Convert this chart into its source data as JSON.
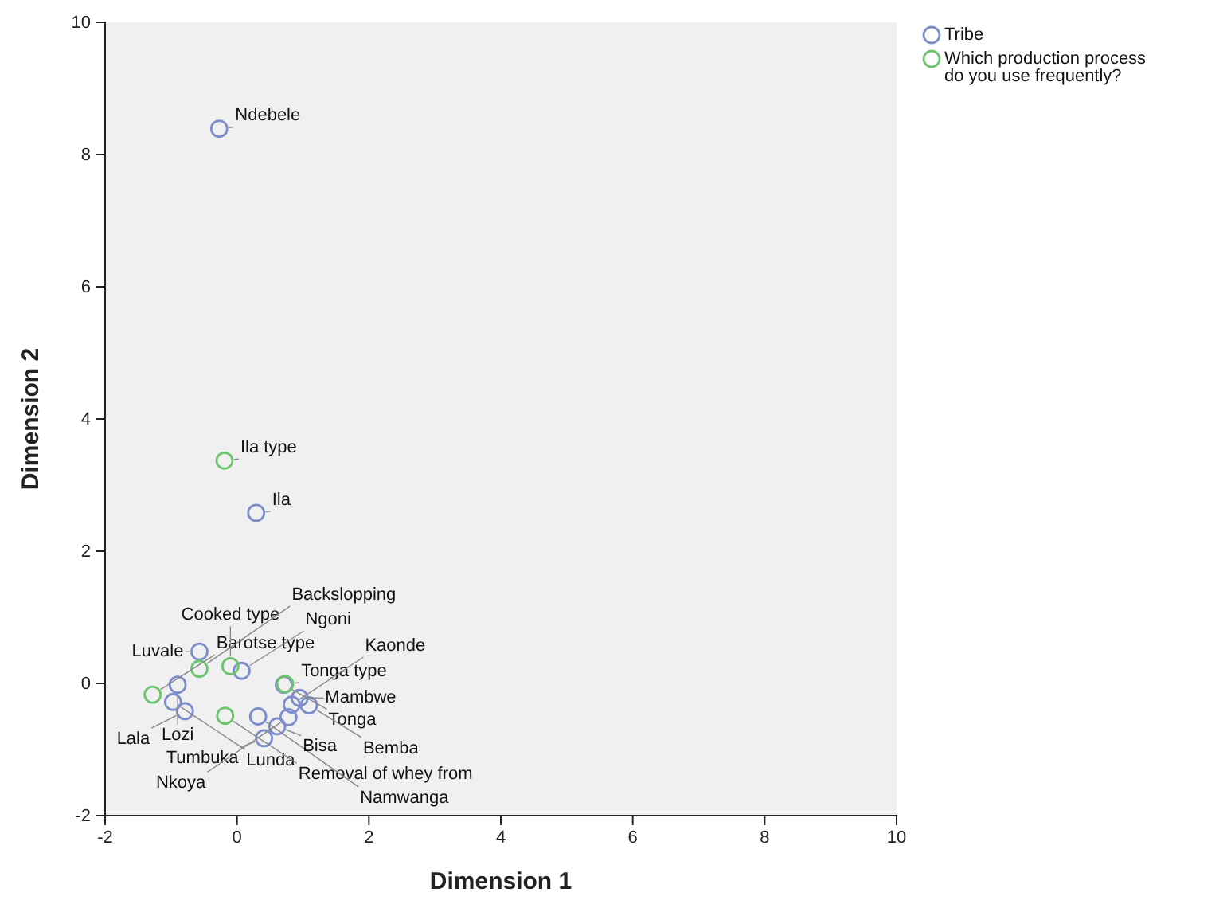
{
  "chart_data": {
    "type": "scatter",
    "xlabel": "Dimension 1",
    "ylabel": "Dimension 2",
    "xlim": [
      -2,
      10
    ],
    "ylim": [
      -2,
      10
    ],
    "xticks": [
      -2,
      0,
      2,
      4,
      6,
      8,
      10
    ],
    "yticks": [
      -2,
      0,
      2,
      4,
      6,
      8,
      10
    ],
    "grid": false,
    "legend": "top right",
    "marker": "circle",
    "series": [
      {
        "name": "Tribe",
        "color": "#7d8dcc",
        "x": [
          -0.27,
          0.29,
          -0.57,
          0.07,
          -0.9,
          -0.97,
          -0.79,
          0.71,
          0.95,
          1.09,
          0.83,
          0.78,
          0.32,
          0.61,
          0.41
        ],
        "values": [
          8.39,
          2.58,
          0.48,
          0.19,
          -0.02,
          -0.28,
          -0.42,
          -0.02,
          -0.22,
          -0.33,
          -0.32,
          -0.51,
          -0.5,
          -0.65,
          -0.83
        ]
      },
      {
        "name": "Which production process do you use frequently?",
        "color": "#6cc46c",
        "x": [
          -0.19,
          -0.57,
          -0.1,
          -1.28,
          -0.18,
          0.73
        ],
        "values": [
          3.37,
          0.22,
          0.26,
          -0.17,
          -0.49,
          -0.01
        ]
      }
    ],
    "annotations": [
      {
        "text": "Ndebele",
        "x": -0.27,
        "y": 8.39
      },
      {
        "text": "Ila type",
        "x": -0.19,
        "y": 3.37
      },
      {
        "text": "Ila",
        "x": 0.29,
        "y": 2.58
      },
      {
        "text": "Barotse type",
        "x": -1.28,
        "y": -0.17
      },
      {
        "text": "Luvale",
        "x": -0.57,
        "y": 0.48
      },
      {
        "text": "Cooked type",
        "x": -0.1,
        "y": 0.26
      },
      {
        "text": "Backslopping",
        "x": -0.57,
        "y": 0.22
      },
      {
        "text": "Lozi",
        "x": -0.9,
        "y": -0.02
      },
      {
        "text": "Tonga type",
        "x": 0.73,
        "y": -0.01
      },
      {
        "text": "Lala",
        "x": -0.79,
        "y": -0.42
      },
      {
        "text": "Ngoni",
        "x": 0.07,
        "y": 0.19
      },
      {
        "text": "Tonga",
        "x": 0.71,
        "y": -0.02
      },
      {
        "text": "Bemba",
        "x": 1.09,
        "y": -0.33
      },
      {
        "text": "Lunda",
        "x": -0.97,
        "y": -0.28
      },
      {
        "text": "Kaonde",
        "x": 0.83,
        "y": -0.32
      },
      {
        "text": "Mambwe",
        "x": 0.95,
        "y": -0.22
      },
      {
        "text": "Tumbuka",
        "x": 0.41,
        "y": -0.83
      },
      {
        "text": "Removal of whey from",
        "x": -0.18,
        "y": -0.49
      },
      {
        "text": "Namwanga",
        "x": 0.32,
        "y": -0.5
      },
      {
        "text": "Nkoya",
        "x": 0.78,
        "y": -0.51
      },
      {
        "text": "Bisa",
        "x": 0.61,
        "y": -0.65
      }
    ]
  }
}
